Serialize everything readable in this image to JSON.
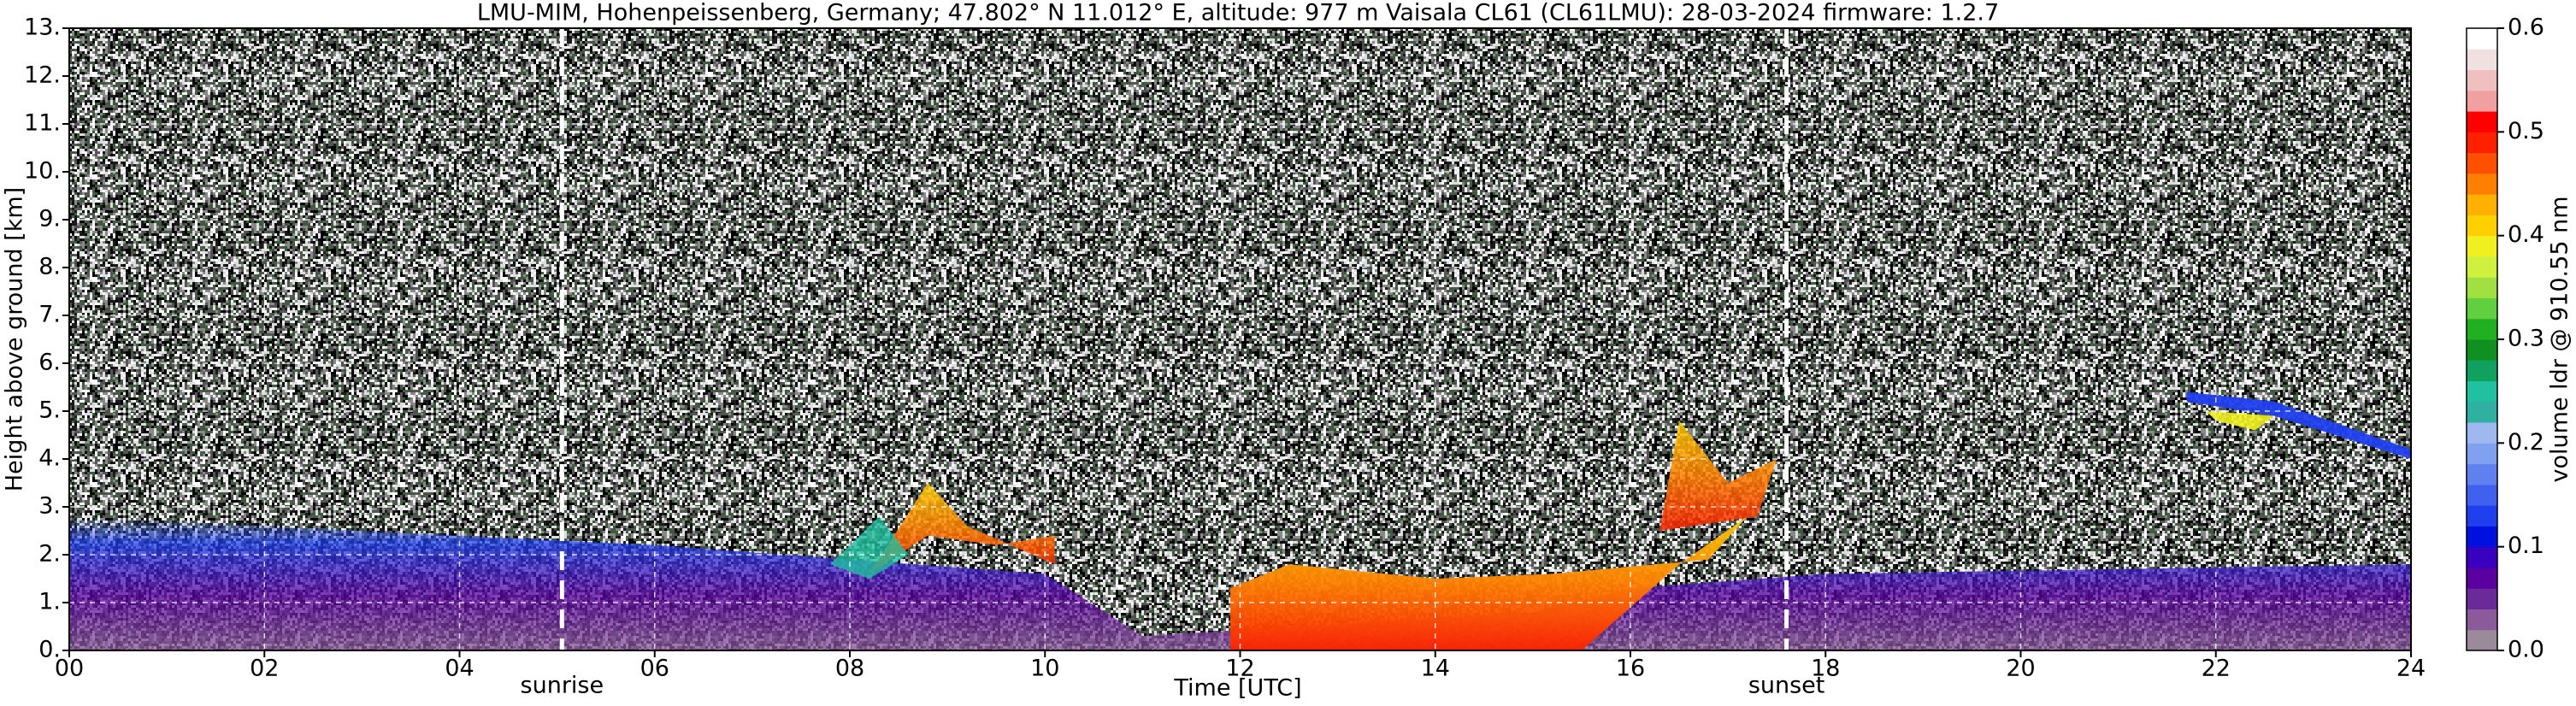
{
  "chart_data": {
    "type": "heatmap",
    "title": "LMU-MIM, Hohenpeissenberg, Germany; 47.802° N 11.012° E, altitude: 977 m    Vaisala CL61 (CL61LMU): 28-03-2024    firmware: 1.2.7",
    "x_label": "Time [UTC]",
    "y_label": "Height above ground [km]",
    "xlim": [
      0,
      24
    ],
    "xticks": [
      {
        "value": 0,
        "label": "00"
      },
      {
        "value": 2,
        "label": "02"
      },
      {
        "value": 4,
        "label": "04"
      },
      {
        "value": 6,
        "label": "06"
      },
      {
        "value": 8,
        "label": "08"
      },
      10,
      12,
      14,
      16,
      18,
      20,
      22,
      24
    ],
    "ylim": [
      0,
      13
    ],
    "yticks": [
      {
        "value": 0,
        "label": "0."
      },
      {
        "value": 1,
        "label": "1."
      },
      {
        "value": 2,
        "label": "2."
      },
      {
        "value": 3,
        "label": "3."
      },
      {
        "value": 4,
        "label": "4."
      },
      {
        "value": 5,
        "label": "5."
      },
      {
        "value": 6,
        "label": "6."
      },
      {
        "value": 7,
        "label": "7."
      },
      {
        "value": 8,
        "label": "8."
      },
      {
        "value": 9,
        "label": "9."
      },
      {
        "value": 10,
        "label": "10."
      },
      {
        "value": 11,
        "label": "11."
      },
      {
        "value": 12,
        "label": "12."
      },
      {
        "value": 13,
        "label": "13."
      }
    ],
    "grid": true,
    "annotations": [
      {
        "text": "sunrise",
        "x": 5.05
      },
      {
        "text": "sunset",
        "x": 17.6
      }
    ],
    "colorbar": {
      "label": "volume ldr @ 910.55 nm",
      "lim": [
        0,
        0.6
      ],
      "ticks": [
        {
          "value": 0,
          "label": "0.0"
        },
        0.1,
        0.2,
        0.3,
        0.4,
        0.5,
        0.6
      ],
      "colors": [
        "#9a8a9a",
        "#8a5a9a",
        "#6a2a9a",
        "#5a00a0",
        "#3a00c0",
        "#0010e0",
        "#2040f0",
        "#4060f0",
        "#6080f0",
        "#80a0f0",
        "#a0b8f0",
        "#30b0a0",
        "#20c0a0",
        "#10a060",
        "#109020",
        "#20b020",
        "#60d040",
        "#a0e040",
        "#d0f040",
        "#f0f020",
        "#ffd000",
        "#ffb000",
        "#ff8000",
        "#ff5000",
        "#ff2000",
        "#ff0000",
        "#f0a0a0",
        "#f0c0c0",
        "#f0e0e0",
        "#ffffff"
      ]
    }
  }
}
